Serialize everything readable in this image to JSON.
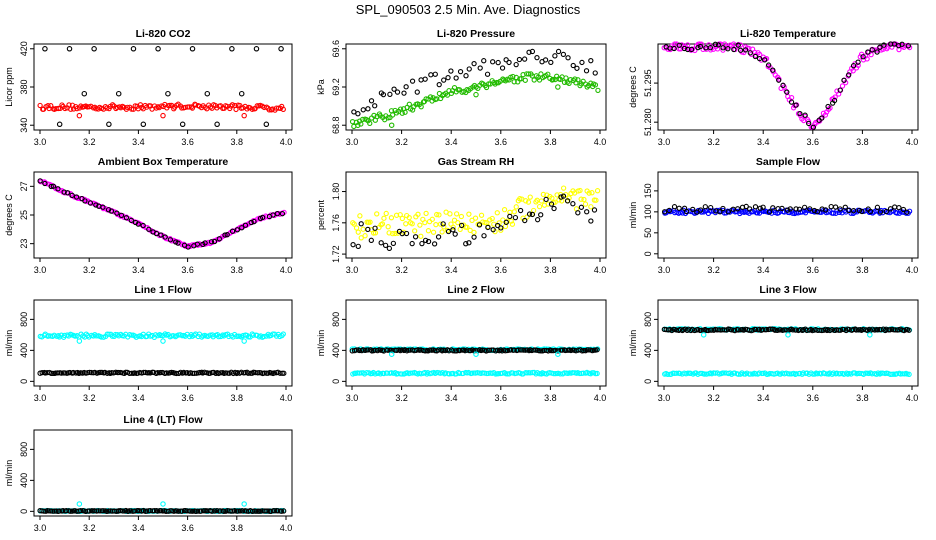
{
  "title": "SPL_090503  2.5 Min. Ave. Diagnostics",
  "colors": {
    "black": "#000000",
    "red": "#ff0000",
    "green": "#22bb00",
    "magenta": "#ff00ff",
    "cyan": "#00ffff",
    "yellow": "#ffff00",
    "blue": "#0000ff"
  },
  "chart_data": [
    {
      "type": "scatter",
      "title": "Li-820 CO2",
      "ylabel": "Licor ppm",
      "xlim": [
        3.0,
        4.0
      ],
      "ylim": [
        335,
        425
      ],
      "xticks": [
        "3.0",
        "3.2",
        "3.4",
        "3.6",
        "3.8",
        "4.0"
      ],
      "yticks": [
        "340",
        "380",
        "420"
      ],
      "series": [
        {
          "name": "avg",
          "color": "#ff0000",
          "kind": "band",
          "x": [
            3.0,
            3.2,
            3.4,
            3.6,
            3.8,
            4.0
          ],
          "y": [
            359,
            359,
            359,
            360,
            359,
            358
          ],
          "spread": 2.5
        },
        {
          "name": "outliers",
          "color": "#000000",
          "kind": "points",
          "x": [
            3.02,
            3.08,
            3.12,
            3.18,
            3.22,
            3.28,
            3.32,
            3.38,
            3.42,
            3.48,
            3.52,
            3.58,
            3.62,
            3.68,
            3.72,
            3.78,
            3.82,
            3.88,
            3.92,
            3.98
          ],
          "y": [
            420,
            341,
            420,
            373,
            420,
            341,
            373,
            420,
            341,
            420,
            373,
            341,
            420,
            373,
            341,
            420,
            373,
            420,
            341,
            420
          ]
        },
        {
          "name": "red-min",
          "color": "#ff0000",
          "kind": "points",
          "x": [
            3.16,
            3.5,
            3.83
          ],
          "y": [
            350,
            350,
            350
          ]
        }
      ]
    },
    {
      "type": "scatter",
      "title": "Li-820 Pressure",
      "ylabel": "kPa",
      "xlim": [
        3.0,
        4.0
      ],
      "ylim": [
        68.75,
        69.65
      ],
      "xticks": [
        "3.0",
        "3.2",
        "3.4",
        "3.6",
        "3.8",
        "4.0"
      ],
      "yticks": [
        "68.8",
        "69.2",
        "69.6"
      ],
      "series": [
        {
          "name": "avg",
          "color": "#22bb00",
          "kind": "band",
          "x": [
            3.0,
            3.1,
            3.2,
            3.3,
            3.4,
            3.5,
            3.6,
            3.7,
            3.8,
            3.9,
            4.0
          ],
          "y": [
            68.82,
            68.87,
            68.95,
            69.05,
            69.15,
            69.2,
            69.27,
            69.3,
            69.3,
            69.25,
            69.18
          ],
          "spread": 0.04
        },
        {
          "name": "max",
          "color": "#000000",
          "kind": "band-sparse",
          "x": [
            3.0,
            3.1,
            3.2,
            3.3,
            3.4,
            3.5,
            3.6,
            3.7,
            3.8,
            3.9,
            4.0
          ],
          "y": [
            68.95,
            69.05,
            69.15,
            69.25,
            69.32,
            69.38,
            69.45,
            69.5,
            69.52,
            69.48,
            69.4
          ],
          "spread": 0.08
        },
        {
          "name": "green-min",
          "color": "#22bb00",
          "kind": "points",
          "x": [
            3.16,
            3.5,
            3.83
          ],
          "y": [
            68.8,
            69.12,
            69.2
          ]
        }
      ]
    },
    {
      "type": "scatter",
      "title": "Li-820 Temperature",
      "ylabel": "degrees C",
      "xlim": [
        3.0,
        4.0
      ],
      "ylim": [
        51.277,
        51.31
      ],
      "xticks": [
        "3.0",
        "3.2",
        "3.4",
        "3.6",
        "3.8",
        "4.0"
      ],
      "yticks": [
        "51.280",
        "51.295"
      ],
      "series": [
        {
          "name": "avg",
          "color": "#ff00ff",
          "kind": "band",
          "x": [
            3.0,
            3.3,
            3.4,
            3.45,
            3.5,
            3.55,
            3.6,
            3.65,
            3.7,
            3.75,
            3.8,
            3.9,
            4.0
          ],
          "y": [
            51.309,
            51.309,
            51.305,
            51.298,
            51.29,
            51.283,
            51.279,
            51.283,
            51.291,
            51.299,
            51.305,
            51.309,
            51.309
          ],
          "spread": 0.0015
        },
        {
          "name": "black",
          "color": "#000000",
          "kind": "band-sparse",
          "x": [
            3.0,
            3.3,
            3.4,
            3.45,
            3.5,
            3.55,
            3.6,
            3.65,
            3.7,
            3.75,
            3.8,
            3.9,
            4.0
          ],
          "y": [
            51.309,
            51.309,
            51.305,
            51.298,
            51.29,
            51.283,
            51.279,
            51.283,
            51.291,
            51.299,
            51.305,
            51.309,
            51.309
          ],
          "spread": 0.0012
        }
      ]
    },
    {
      "type": "scatter",
      "title": "Ambient Box Temperature",
      "ylabel": "degrees C",
      "xlim": [
        3.0,
        4.0
      ],
      "ylim": [
        22.0,
        28.0
      ],
      "xticks": [
        "3.0",
        "3.2",
        "3.4",
        "3.6",
        "3.8",
        "4.0"
      ],
      "yticks": [
        "23",
        "25",
        "27"
      ],
      "series": [
        {
          "name": "avg",
          "color": "#ff00ff",
          "kind": "band",
          "x": [
            3.0,
            3.1,
            3.2,
            3.3,
            3.4,
            3.5,
            3.6,
            3.7,
            3.8,
            3.9,
            4.0
          ],
          "y": [
            27.4,
            26.6,
            25.9,
            25.2,
            24.4,
            23.5,
            22.8,
            23.1,
            24.0,
            24.8,
            25.2
          ],
          "spread": 0.06
        },
        {
          "name": "black",
          "color": "#000000",
          "kind": "band-sparse",
          "x": [
            3.0,
            3.1,
            3.2,
            3.3,
            3.4,
            3.5,
            3.6,
            3.7,
            3.8,
            3.9,
            4.0
          ],
          "y": [
            27.4,
            26.6,
            25.9,
            25.2,
            24.4,
            23.5,
            22.8,
            23.1,
            24.0,
            24.8,
            25.2
          ],
          "spread": 0.05
        }
      ]
    },
    {
      "type": "scatter",
      "title": "Gas Stream RH",
      "ylabel": "percent",
      "xlim": [
        3.0,
        4.0
      ],
      "ylim": [
        1.715,
        1.825
      ],
      "xticks": [
        "3.0",
        "3.2",
        "3.4",
        "3.6",
        "3.8",
        "4.0"
      ],
      "yticks": [
        "1.72",
        "1.76",
        "1.80"
      ],
      "series": [
        {
          "name": "avg",
          "color": "#ffff00",
          "kind": "band",
          "x": [
            3.0,
            3.1,
            3.2,
            3.3,
            3.4,
            3.5,
            3.6,
            3.7,
            3.8,
            3.9,
            4.0
          ],
          "y": [
            1.755,
            1.757,
            1.757,
            1.758,
            1.76,
            1.76,
            1.763,
            1.78,
            1.795,
            1.792,
            1.79
          ],
          "spread": 0.015
        },
        {
          "name": "black",
          "color": "#000000",
          "kind": "band-sparse",
          "x": [
            3.0,
            3.1,
            3.2,
            3.3,
            3.4,
            3.5,
            3.6,
            3.7,
            3.8,
            3.9,
            4.0
          ],
          "y": [
            1.745,
            1.742,
            1.74,
            1.742,
            1.745,
            1.742,
            1.748,
            1.765,
            1.782,
            1.78,
            1.775
          ],
          "spread": 0.015
        }
      ]
    },
    {
      "type": "scatter",
      "title": "Sample Flow",
      "ylabel": "ml/min",
      "xlim": [
        3.0,
        4.0
      ],
      "ylim": [
        -10,
        195
      ],
      "xticks": [
        "3.0",
        "3.2",
        "3.4",
        "3.6",
        "3.8",
        "4.0"
      ],
      "yticks": [
        "0",
        "50",
        "100",
        "150"
      ],
      "series": [
        {
          "name": "avg",
          "color": "#0000ff",
          "kind": "band",
          "x": [
            3.0,
            4.0
          ],
          "y": [
            100,
            100
          ],
          "spread": 4
        },
        {
          "name": "black",
          "color": "#000000",
          "kind": "band-sparse",
          "x": [
            3.0,
            4.0
          ],
          "y": [
            106,
            106
          ],
          "spread": 7
        }
      ]
    },
    {
      "type": "scatter",
      "title": "Line 1 Flow",
      "ylabel": "ml/min",
      "xlim": [
        3.0,
        4.0
      ],
      "ylim": [
        -60,
        1050
      ],
      "xticks": [
        "3.0",
        "3.2",
        "3.4",
        "3.6",
        "3.8",
        "4.0"
      ],
      "yticks": [
        "0",
        "400",
        "800"
      ],
      "series": [
        {
          "name": "cyan",
          "color": "#00ffff",
          "kind": "band",
          "x": [
            3.0,
            4.0
          ],
          "y": [
            590,
            590
          ],
          "spread": 22
        },
        {
          "name": "black",
          "color": "#000000",
          "kind": "band",
          "x": [
            3.0,
            4.0
          ],
          "y": [
            110,
            110
          ],
          "spread": 8
        },
        {
          "name": "cyan-min",
          "color": "#00ffff",
          "kind": "points",
          "x": [
            3.16,
            3.5,
            3.83
          ],
          "y": [
            520,
            520,
            520
          ]
        }
      ]
    },
    {
      "type": "scatter",
      "title": "Line 2 Flow",
      "ylabel": "ml/min",
      "xlim": [
        3.0,
        4.0
      ],
      "ylim": [
        -60,
        1050
      ],
      "xticks": [
        "3.0",
        "3.2",
        "3.4",
        "3.6",
        "3.8",
        "4.0"
      ],
      "yticks": [
        "0",
        "400",
        "800"
      ],
      "series": [
        {
          "name": "cyan-top",
          "color": "#00ffff",
          "kind": "band",
          "x": [
            3.0,
            4.0
          ],
          "y": [
            410,
            410
          ],
          "spread": 10
        },
        {
          "name": "black",
          "color": "#000000",
          "kind": "band",
          "x": [
            3.0,
            4.0
          ],
          "y": [
            400,
            400
          ],
          "spread": 8
        },
        {
          "name": "cyan",
          "color": "#00ffff",
          "kind": "band",
          "x": [
            3.0,
            4.0
          ],
          "y": [
            105,
            105
          ],
          "spread": 10
        },
        {
          "name": "cyan-min",
          "color": "#00ffff",
          "kind": "points",
          "x": [
            3.16,
            3.5,
            3.83
          ],
          "y": [
            350,
            350,
            350
          ]
        }
      ]
    },
    {
      "type": "scatter",
      "title": "Line 3 Flow",
      "ylabel": "ml/min",
      "xlim": [
        3.0,
        4.0
      ],
      "ylim": [
        -60,
        1050
      ],
      "xticks": [
        "3.0",
        "3.2",
        "3.4",
        "3.6",
        "3.8",
        "4.0"
      ],
      "yticks": [
        "0",
        "400",
        "800"
      ],
      "series": [
        {
          "name": "cyan-top",
          "color": "#00ffff",
          "kind": "band",
          "x": [
            3.0,
            4.0
          ],
          "y": [
            670,
            670
          ],
          "spread": 10
        },
        {
          "name": "black",
          "color": "#000000",
          "kind": "band",
          "x": [
            3.0,
            4.0
          ],
          "y": [
            665,
            665
          ],
          "spread": 10
        },
        {
          "name": "cyan",
          "color": "#00ffff",
          "kind": "band",
          "x": [
            3.0,
            4.0
          ],
          "y": [
            100,
            100
          ],
          "spread": 10
        },
        {
          "name": "cyan-min",
          "color": "#00ffff",
          "kind": "points",
          "x": [
            3.16,
            3.5,
            3.83
          ],
          "y": [
            600,
            600,
            600
          ]
        }
      ]
    },
    {
      "type": "scatter",
      "title": "Line 4 (LT) Flow",
      "ylabel": "ml/min",
      "xlim": [
        3.0,
        4.0
      ],
      "ylim": [
        -60,
        1050
      ],
      "xticks": [
        "3.0",
        "3.2",
        "3.4",
        "3.6",
        "3.8",
        "4.0"
      ],
      "yticks": [
        "0",
        "400",
        "800"
      ],
      "series": [
        {
          "name": "cyan",
          "color": "#00ffff",
          "kind": "band",
          "x": [
            3.0,
            4.0
          ],
          "y": [
            5,
            5
          ],
          "spread": 6
        },
        {
          "name": "black",
          "color": "#000000",
          "kind": "band",
          "x": [
            3.0,
            4.0
          ],
          "y": [
            5,
            5
          ],
          "spread": 5
        },
        {
          "name": "cyan-max",
          "color": "#00ffff",
          "kind": "points",
          "x": [
            3.16,
            3.5,
            3.83
          ],
          "y": [
            95,
            95,
            95
          ]
        }
      ]
    }
  ]
}
